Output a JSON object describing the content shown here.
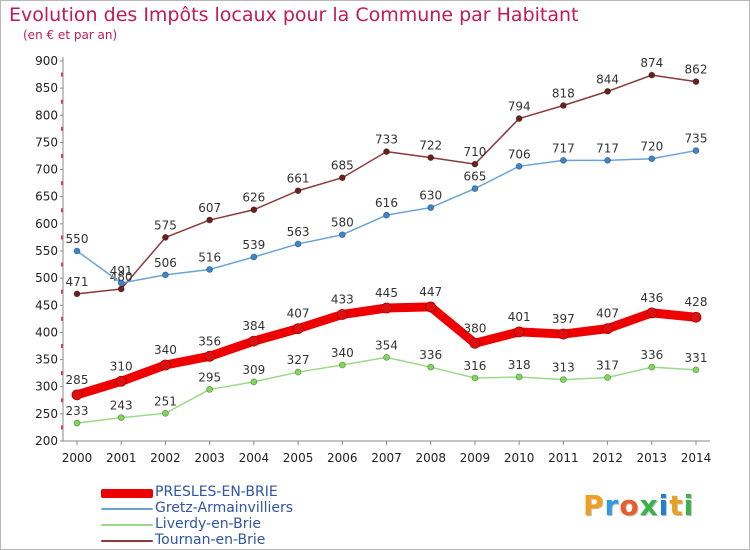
{
  "header": {
    "title": "Evolution des Impôts locaux pour la Commune par Habitant",
    "subtitle": "(en € et par an)"
  },
  "logo": {
    "text": "Proxiti",
    "colors": [
      "#f0a020",
      "#2f9be3",
      "#e85d2a",
      "#3cb34a",
      "#1f7fd0",
      "#e8a020",
      "#3cb34a"
    ]
  },
  "chart_data": {
    "type": "line",
    "x": [
      2000,
      2001,
      2002,
      2003,
      2004,
      2005,
      2006,
      2007,
      2008,
      2009,
      2010,
      2011,
      2012,
      2013,
      2014
    ],
    "ylim": [
      200,
      900
    ],
    "yticks": [
      200,
      250,
      300,
      350,
      400,
      450,
      500,
      550,
      600,
      650,
      700,
      750,
      800,
      850,
      900
    ],
    "grid": false,
    "legend_position": "bottom-left",
    "series": [
      {
        "name": "PRESLES-EN-BRIE",
        "color": "#ee0000",
        "marker": "#dd1111",
        "values": [
          285,
          310,
          340,
          356,
          384,
          407,
          433,
          445,
          447,
          380,
          401,
          397,
          407,
          436,
          428
        ]
      },
      {
        "name": "Gretz-Armainvilliers",
        "color": "#6aa3d5",
        "marker": "#3b86cc",
        "values": [
          550,
          491,
          506,
          516,
          539,
          563,
          580,
          616,
          630,
          665,
          706,
          717,
          717,
          720,
          735
        ]
      },
      {
        "name": "Liverdy-en-Brie",
        "color": "#9bd98a",
        "marker": "#7ed957",
        "values": [
          233,
          243,
          251,
          295,
          309,
          327,
          340,
          354,
          336,
          316,
          318,
          313,
          317,
          336,
          331
        ]
      },
      {
        "name": "Tournan-en-Brie",
        "color": "#8a3a3a",
        "marker": "#6b1f1f",
        "values": [
          471,
          480,
          575,
          607,
          626,
          661,
          685,
          733,
          722,
          710,
          794,
          818,
          844,
          874,
          862
        ]
      }
    ]
  }
}
